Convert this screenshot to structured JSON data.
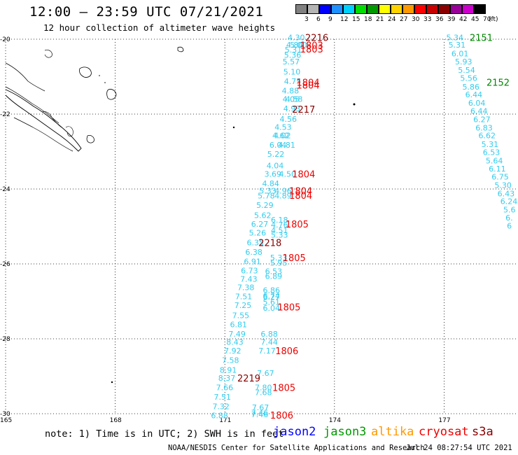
{
  "header": {
    "title": "12:00 – 23:59 UTC 07/21/2021",
    "subtitle": "12 hour collection of altimeter wave heights"
  },
  "color_scale": {
    "unit": "(ft)",
    "bins": [
      {
        "label": "3",
        "color": "#808080"
      },
      {
        "label": "6",
        "color": "#b4b4b4"
      },
      {
        "label": "9",
        "color": "#0000ff"
      },
      {
        "label": "12",
        "color": "#1e90ff"
      },
      {
        "label": "15",
        "color": "#00d0ff"
      },
      {
        "label": "18",
        "color": "#00dd00"
      },
      {
        "label": "21",
        "color": "#009900"
      },
      {
        "label": "24",
        "color": "#ffff00"
      },
      {
        "label": "27",
        "color": "#ffd200"
      },
      {
        "label": "30",
        "color": "#ff9900"
      },
      {
        "label": "33",
        "color": "#ff0000"
      },
      {
        "label": "36",
        "color": "#c80000"
      },
      {
        "label": "39",
        "color": "#8b0000"
      },
      {
        "label": "42",
        "color": "#990099"
      },
      {
        "label": "45",
        "color": "#cc00cc"
      },
      {
        "label": "70",
        "color": "#000000"
      }
    ]
  },
  "axes": {
    "lat_labels": [
      {
        "label": "-20",
        "lat": -20
      },
      {
        "label": "-22",
        "lat": -22
      },
      {
        "label": "-24",
        "lat": -24
      },
      {
        "label": "-26",
        "lat": -26
      },
      {
        "label": "-28",
        "lat": -28
      },
      {
        "label": "-30",
        "lat": -30
      }
    ],
    "lon_labels": [
      {
        "label": "165",
        "lon": 165
      },
      {
        "label": "168",
        "lon": 168
      },
      {
        "label": "171",
        "lon": 171
      },
      {
        "label": "174",
        "lon": 174
      },
      {
        "label": "177",
        "lon": 177
      }
    ]
  },
  "colors": {
    "swh": "#33ccee",
    "time_red": "#ee0000",
    "time_dark": "#880000",
    "time_green": "#008800",
    "jason2": "#0000ff",
    "jason3": "#009900",
    "altika": "#ff9900",
    "cryosat": "#ee0000",
    "s3a": "#880000"
  },
  "swh_labels": [
    {
      "t": "4.30",
      "lon": 172.72,
      "lat": -19.95
    },
    {
      "t": "4.80",
      "lon": 172.68,
      "lat": -20.15
    },
    {
      "t": "5.00",
      "lon": 172.78,
      "lat": -20.15
    },
    {
      "t": "5.31",
      "lon": 172.64,
      "lat": -20.28
    },
    {
      "t": "5.36",
      "lon": 172.62,
      "lat": -20.42
    },
    {
      "t": "5.57",
      "lon": 172.58,
      "lat": -20.6
    },
    {
      "t": "5.10",
      "lon": 172.6,
      "lat": -20.87
    },
    {
      "t": "4.75",
      "lon": 172.62,
      "lat": -21.12
    },
    {
      "t": "4.88",
      "lon": 172.56,
      "lat": -21.37
    },
    {
      "t": "4.05",
      "lon": 172.58,
      "lat": -21.6
    },
    {
      "t": "4.58",
      "lon": 172.66,
      "lat": -21.6
    },
    {
      "t": "4.93",
      "lon": 172.6,
      "lat": -21.85
    },
    {
      "t": "4.56",
      "lon": 172.5,
      "lat": -22.13
    },
    {
      "t": "4.53",
      "lon": 172.36,
      "lat": -22.35
    },
    {
      "t": "4.62",
      "lon": 172.3,
      "lat": -22.57
    },
    {
      "t": "4.02",
      "lon": 172.34,
      "lat": -22.57
    },
    {
      "t": "6.04",
      "lon": 172.22,
      "lat": -22.82
    },
    {
      "t": "4.81",
      "lon": 172.46,
      "lat": -22.82
    },
    {
      "t": "5.22",
      "lon": 172.16,
      "lat": -23.07
    },
    {
      "t": "4.04",
      "lon": 172.14,
      "lat": -23.37
    },
    {
      "t": "3.69",
      "lon": 172.08,
      "lat": -23.6
    },
    {
      "t": "4.50",
      "lon": 172.48,
      "lat": -23.6
    },
    {
      "t": "4.84",
      "lon": 172.02,
      "lat": -23.85
    },
    {
      "t": "5.33",
      "lon": 171.94,
      "lat": -24.05
    },
    {
      "t": "4.96",
      "lon": 172.36,
      "lat": -24.05
    },
    {
      "t": "5.78",
      "lon": 171.9,
      "lat": -24.18
    },
    {
      "t": "4.89",
      "lon": 172.36,
      "lat": -24.18
    },
    {
      "t": "5.29",
      "lon": 171.86,
      "lat": -24.43
    },
    {
      "t": "5.62",
      "lon": 171.8,
      "lat": -24.7
    },
    {
      "t": "6.18",
      "lon": 172.26,
      "lat": -24.82
    },
    {
      "t": "6.27",
      "lon": 171.72,
      "lat": -24.93
    },
    {
      "t": "4.76",
      "lon": 172.26,
      "lat": -24.95
    },
    {
      "t": "4.51",
      "lon": 172.26,
      "lat": -25.1
    },
    {
      "t": "5.26",
      "lon": 171.66,
      "lat": -25.17
    },
    {
      "t": "5.33",
      "lon": 172.26,
      "lat": -25.22
    },
    {
      "t": "6.35",
      "lon": 171.6,
      "lat": -25.43
    },
    {
      "t": "6.38",
      "lon": 171.56,
      "lat": -25.68
    },
    {
      "t": "5.33",
      "lon": 172.24,
      "lat": -25.83
    },
    {
      "t": "6.91",
      "lon": 171.52,
      "lat": -25.93
    },
    {
      "t": "5.95",
      "lon": 172.24,
      "lat": -25.97
    },
    {
      "t": "6.73",
      "lon": 171.44,
      "lat": -26.18
    },
    {
      "t": "6.53",
      "lon": 172.1,
      "lat": -26.2
    },
    {
      "t": "6.89",
      "lon": 172.1,
      "lat": -26.33
    },
    {
      "t": "7.43",
      "lon": 171.42,
      "lat": -26.4
    },
    {
      "t": "7.38",
      "lon": 171.34,
      "lat": -26.63
    },
    {
      "t": "6.86",
      "lon": 172.04,
      "lat": -26.7
    },
    {
      "t": "6.74",
      "lon": 172.04,
      "lat": -26.85
    },
    {
      "t": "7.51",
      "lon": 171.28,
      "lat": -26.87
    },
    {
      "t": "6.27",
      "lon": 172.04,
      "lat": -26.88
    },
    {
      "t": "5.61",
      "lon": 172.04,
      "lat": -27.02
    },
    {
      "t": "7.25",
      "lon": 171.26,
      "lat": -27.1
    },
    {
      "t": "6.04",
      "lon": 172.04,
      "lat": -27.18
    },
    {
      "t": "7.55",
      "lon": 171.2,
      "lat": -27.37
    },
    {
      "t": "6.81",
      "lon": 171.14,
      "lat": -27.62
    },
    {
      "t": "7.49",
      "lon": 171.1,
      "lat": -27.87
    },
    {
      "t": "6.88",
      "lon": 171.98,
      "lat": -27.87
    },
    {
      "t": "8.43",
      "lon": 171.04,
      "lat": -28.08
    },
    {
      "t": "7.44",
      "lon": 171.98,
      "lat": -28.08
    },
    {
      "t": "7.92",
      "lon": 170.98,
      "lat": -28.32
    },
    {
      "t": "7.17",
      "lon": 171.92,
      "lat": -28.32
    },
    {
      "t": "7.58",
      "lon": 170.92,
      "lat": -28.57
    },
    {
      "t": "8.91",
      "lon": 170.86,
      "lat": -28.83
    },
    {
      "t": "7.67",
      "lon": 171.88,
      "lat": -28.92
    },
    {
      "t": "8.37",
      "lon": 170.82,
      "lat": -29.05
    },
    {
      "t": "7.66",
      "lon": 170.76,
      "lat": -29.3
    },
    {
      "t": "7.80",
      "lon": 171.82,
      "lat": -29.3
    },
    {
      "t": "7.68",
      "lon": 171.82,
      "lat": -29.43
    },
    {
      "t": "7.51",
      "lon": 170.7,
      "lat": -29.55
    },
    {
      "t": "7.32",
      "lon": 170.66,
      "lat": -29.8
    },
    {
      "t": "7.67",
      "lon": 171.74,
      "lat": -29.83
    },
    {
      "t": "6.88",
      "lon": 170.62,
      "lat": -30.05
    },
    {
      "t": "7.46",
      "lon": 171.72,
      "lat": -29.97
    },
    {
      "t": "7.46",
      "lon": 171.72,
      "lat": -30.02
    },
    {
      "t": "5.34",
      "lon": 177.06,
      "lat": -19.95
    },
    {
      "t": "5.31",
      "lon": 177.12,
      "lat": -20.15
    },
    {
      "t": "6.01",
      "lon": 177.2,
      "lat": -20.38
    },
    {
      "t": "5.93",
      "lon": 177.3,
      "lat": -20.6
    },
    {
      "t": "5.54",
      "lon": 177.38,
      "lat": -20.82
    },
    {
      "t": "5.56",
      "lon": 177.44,
      "lat": -21.04
    },
    {
      "t": "5.86",
      "lon": 177.5,
      "lat": -21.27
    },
    {
      "t": "6.44",
      "lon": 177.58,
      "lat": -21.48
    },
    {
      "t": "6.04",
      "lon": 177.66,
      "lat": -21.7
    },
    {
      "t": "6.44",
      "lon": 177.72,
      "lat": -21.92
    },
    {
      "t": "6.27",
      "lon": 177.8,
      "lat": -22.14
    },
    {
      "t": "6.83",
      "lon": 177.86,
      "lat": -22.36
    },
    {
      "t": "6.62",
      "lon": 177.94,
      "lat": -22.57
    },
    {
      "t": "5.31",
      "lon": 178.02,
      "lat": -22.8
    },
    {
      "t": "6.53",
      "lon": 178.06,
      "lat": -23.02
    },
    {
      "t": "5.64",
      "lon": 178.14,
      "lat": -23.24
    },
    {
      "t": "6.11",
      "lon": 178.22,
      "lat": -23.46
    },
    {
      "t": "6.75",
      "lon": 178.3,
      "lat": -23.67
    },
    {
      "t": "5.30",
      "lon": 178.38,
      "lat": -23.9
    },
    {
      "t": "6.43",
      "lon": 178.46,
      "lat": -24.12
    },
    {
      "t": "6.24",
      "lon": 178.54,
      "lat": -24.33
    },
    {
      "t": "5.6",
      "lon": 178.62,
      "lat": -24.55
    },
    {
      "t": "6.",
      "lon": 178.68,
      "lat": -24.77
    },
    {
      "t": "6",
      "lon": 178.72,
      "lat": -24.98
    }
  ],
  "time_labels": [
    {
      "t": "2216",
      "lon": 173.2,
      "lat": -19.95,
      "c": "time_dark"
    },
    {
      "t": "1803",
      "lon": 173.06,
      "lat": -20.16,
      "c": "time_red"
    },
    {
      "t": "1803",
      "lon": 173.06,
      "lat": -20.26,
      "c": "time_red"
    },
    {
      "t": "1804",
      "lon": 172.96,
      "lat": -21.15,
      "c": "time_red"
    },
    {
      "t": "1804",
      "lon": 172.96,
      "lat": -21.22,
      "c": "time_red"
    },
    {
      "t": "2217",
      "lon": 172.84,
      "lat": -21.87,
      "c": "time_dark"
    },
    {
      "t": "1804",
      "lon": 172.84,
      "lat": -23.6,
      "c": "time_red"
    },
    {
      "t": "1804",
      "lon": 172.76,
      "lat": -24.05,
      "c": "time_red"
    },
    {
      "t": "1804",
      "lon": 172.76,
      "lat": -24.17,
      "c": "time_red"
    },
    {
      "t": "1805",
      "lon": 172.66,
      "lat": -24.93,
      "c": "time_red"
    },
    {
      "t": "2218",
      "lon": 171.92,
      "lat": -25.43,
      "c": "time_dark"
    },
    {
      "t": "1805",
      "lon": 172.58,
      "lat": -25.83,
      "c": "time_red"
    },
    {
      "t": "1805",
      "lon": 172.44,
      "lat": -27.15,
      "c": "time_red"
    },
    {
      "t": "1806",
      "lon": 172.38,
      "lat": -28.32,
      "c": "time_red"
    },
    {
      "t": "2219",
      "lon": 171.34,
      "lat": -29.05,
      "c": "time_dark"
    },
    {
      "t": "1805",
      "lon": 172.3,
      "lat": -29.3,
      "c": "time_red"
    },
    {
      "t": "1806",
      "lon": 172.24,
      "lat": -30.04,
      "c": "time_red"
    },
    {
      "t": "2151",
      "lon": 177.7,
      "lat": -19.95,
      "c": "time_green"
    },
    {
      "t": "2152",
      "lon": 178.16,
      "lat": -21.15,
      "c": "time_green"
    }
  ],
  "footer": {
    "note": "note: 1) Time is in UTC; 2) SWH is in feet",
    "satellites": {
      "jason2": "jason2",
      "jason3": "jason3",
      "altika": "altika",
      "cryosat": "cryosat",
      "s3a": "s3a"
    },
    "credit": "NOAA/NESDIS Center for Satellite Applications and Research",
    "timestamp": "Jul 24 08:27:54 UTC 2021"
  }
}
